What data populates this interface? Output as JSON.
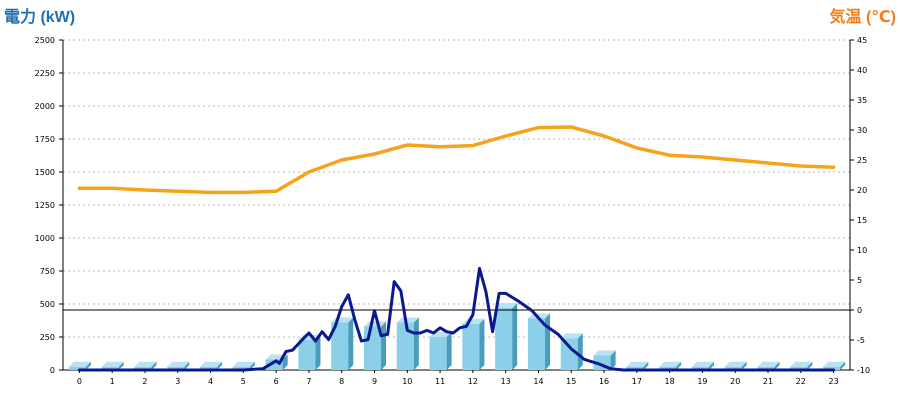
{
  "chart_data": {
    "type": "bar",
    "left_axis_title": "電力 (kW)",
    "right_axis_title": "気温 (℃)",
    "left_axis_color": "#1f6fb2",
    "right_axis_color": "#f07e1e",
    "categories": [
      "0",
      "1",
      "2",
      "3",
      "4",
      "5",
      "6",
      "7",
      "8",
      "9",
      "10",
      "11",
      "12",
      "13",
      "14",
      "15",
      "16",
      "17",
      "18",
      "19",
      "20",
      "21",
      "22",
      "23"
    ],
    "ylim_left": [
      0,
      2500
    ],
    "yticks_left": [
      "0",
      "250",
      "500",
      "750",
      "1000",
      "1250",
      "1500",
      "1750",
      "2000",
      "2250",
      "2500"
    ],
    "ylim_right": [
      -10,
      45
    ],
    "yticks_right": [
      "-10",
      "-5",
      "0",
      "5",
      "10",
      "15",
      "20",
      "25",
      "30",
      "35",
      "40",
      "45"
    ],
    "grid": "horizontal dotted",
    "reference_line": {
      "axis": "right",
      "value": 0
    },
    "bars": {
      "axis": "left",
      "color": "#8ccfe8",
      "values": [
        25,
        25,
        25,
        25,
        25,
        25,
        80,
        230,
        360,
        330,
        360,
        250,
        350,
        470,
        390,
        240,
        110,
        25,
        25,
        25,
        25,
        25,
        25,
        25
      ]
    },
    "power_line": {
      "axis": "left",
      "color": "#0a1a8c",
      "x": [
        0,
        5,
        5.6,
        6,
        6.1,
        6.3,
        6.5,
        6.8,
        7,
        7.2,
        7.4,
        7.6,
        7.8,
        8,
        8.2,
        8.4,
        8.6,
        8.8,
        9,
        9.2,
        9.4,
        9.6,
        9.8,
        10,
        10.2,
        10.4,
        10.6,
        10.8,
        11,
        11.2,
        11.4,
        11.6,
        11.8,
        12,
        12.2,
        12.4,
        12.6,
        12.8,
        13,
        13.4,
        13.8,
        14.2,
        14.6,
        15,
        15.4,
        15.8,
        16.2,
        16.6,
        17,
        20,
        23
      ],
      "values": [
        0,
        0,
        10,
        70,
        50,
        140,
        150,
        230,
        280,
        220,
        290,
        230,
        330,
        480,
        570,
        380,
        220,
        230,
        450,
        260,
        270,
        670,
        600,
        300,
        280,
        280,
        300,
        280,
        320,
        290,
        280,
        320,
        330,
        420,
        770,
        590,
        290,
        580,
        580,
        520,
        450,
        340,
        270,
        160,
        80,
        50,
        10,
        0,
        0,
        0,
        0
      ]
    },
    "temperature_line": {
      "axis": "right",
      "color": "#f7a21b",
      "x": [
        0,
        1,
        2,
        3,
        4,
        5,
        6,
        7,
        8,
        9,
        10,
        11,
        12,
        13,
        14,
        15,
        16,
        17,
        18,
        19,
        20,
        21,
        22,
        23
      ],
      "values": [
        20.3,
        20.3,
        20.0,
        19.8,
        19.6,
        19.6,
        19.8,
        23.0,
        25.0,
        26.0,
        27.5,
        27.2,
        27.4,
        29.0,
        30.4,
        30.5,
        29.0,
        27.0,
        25.8,
        25.5,
        25.0,
        24.5,
        24.0,
        23.8
      ]
    }
  }
}
